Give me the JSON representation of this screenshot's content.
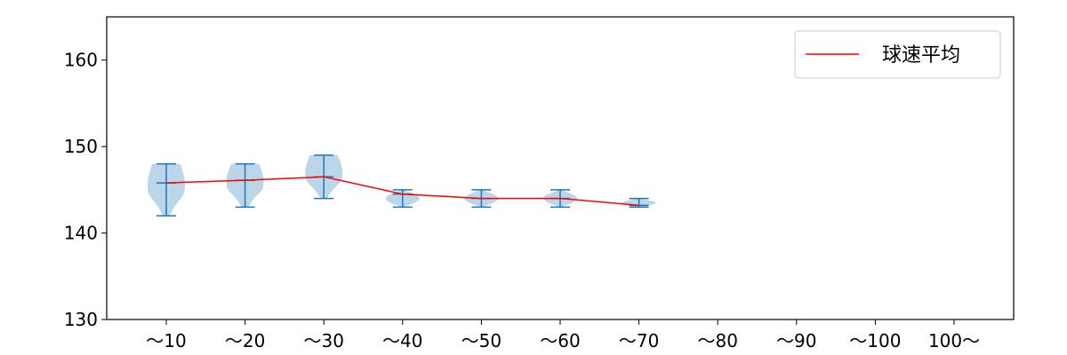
{
  "chart_data": {
    "type": "violin",
    "categories": [
      "〜10",
      "〜20",
      "〜30",
      "〜40",
      "〜50",
      "〜60",
      "〜70",
      "〜80",
      "〜90",
      "〜100",
      "100〜"
    ],
    "ylim": [
      130,
      165
    ],
    "yticks": [
      130,
      140,
      150,
      160
    ],
    "series": [
      {
        "name": "球速平均",
        "color": "#ff0000",
        "values": [
          145.8,
          146.1,
          146.5,
          144.5,
          144.0,
          144.0,
          143.2
        ]
      }
    ],
    "violins": [
      {
        "category": "〜10",
        "min": 142,
        "max": 148,
        "mean": 145.8
      },
      {
        "category": "〜20",
        "min": 143,
        "max": 148,
        "mean": 146.1
      },
      {
        "category": "〜30",
        "min": 144,
        "max": 149,
        "mean": 146.5
      },
      {
        "category": "〜40",
        "min": 143,
        "max": 145,
        "mean": 144.5
      },
      {
        "category": "〜50",
        "min": 143,
        "max": 145,
        "mean": 144.0
      },
      {
        "category": "〜60",
        "min": 143,
        "max": 145,
        "mean": 144.0
      },
      {
        "category": "〜70",
        "min": 143,
        "max": 144,
        "mean": 143.2
      }
    ],
    "violin_color": "#1f77b4",
    "legend": {
      "position": "top-right",
      "label": "球速平均"
    },
    "title": "",
    "xlabel": "",
    "ylabel": ""
  }
}
